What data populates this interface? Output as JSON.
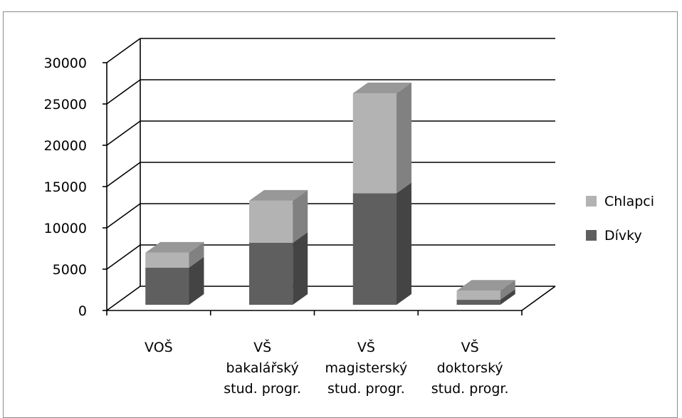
{
  "chart_data": {
    "type": "bar",
    "stacked": true,
    "three_d": true,
    "categories": [
      [
        "VOŠ"
      ],
      [
        "VŠ",
        "bakalářský",
        "stud. progr."
      ],
      [
        "VŠ",
        "magisterský",
        "stud. progr."
      ],
      [
        "VŠ",
        "doktorský",
        "stud. progr."
      ]
    ],
    "series": [
      {
        "name": "Dívky",
        "color": "#5f5f5f",
        "values": [
          4500,
          7500,
          13500,
          600
        ]
      },
      {
        "name": "Chlapci",
        "color": "#b3b3b3",
        "values": [
          1800,
          5100,
          12100,
          1100
        ]
      }
    ],
    "ylim": [
      0,
      30000
    ],
    "yticks": [
      0,
      5000,
      10000,
      15000,
      20000,
      25000,
      30000
    ],
    "grid": true,
    "legend_position": "right",
    "title": "",
    "xlabel": "",
    "ylabel": ""
  }
}
